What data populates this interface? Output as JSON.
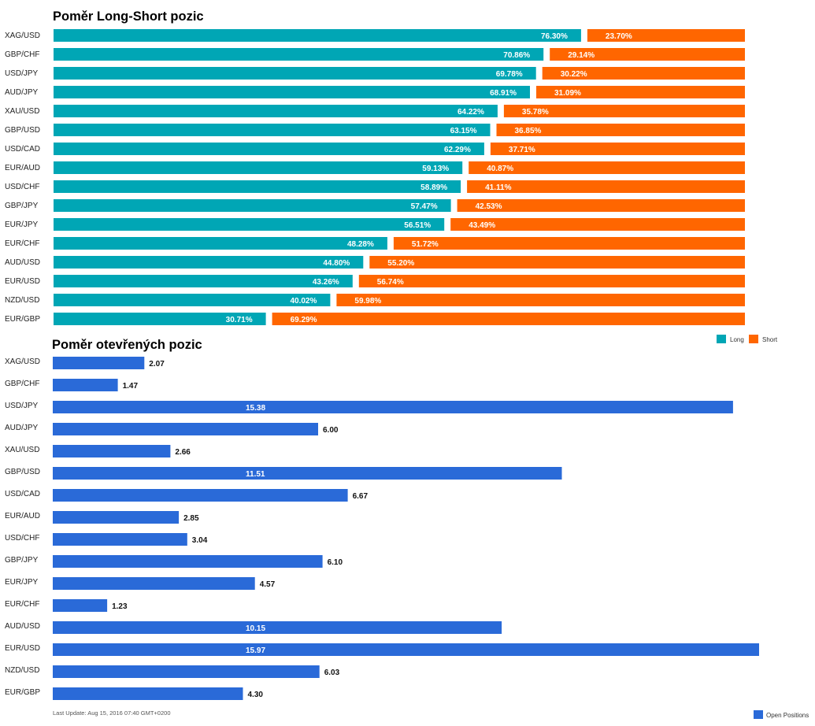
{
  "colors": {
    "long": "#00a6b5",
    "short": "#ff6600",
    "open": "#2a6ad8"
  },
  "chart_data": [
    {
      "type": "bar",
      "orientation": "horizontal",
      "stacked": "percent",
      "title": "Poměr Long-Short pozic",
      "categories": [
        "XAG/USD",
        "GBP/CHF",
        "USD/JPY",
        "AUD/JPY",
        "XAU/USD",
        "GBP/USD",
        "USD/CAD",
        "EUR/AUD",
        "USD/CHF",
        "GBP/JPY",
        "EUR/JPY",
        "EUR/CHF",
        "AUD/USD",
        "EUR/USD",
        "NZD/USD",
        "EUR/GBP"
      ],
      "series": [
        {
          "name": "Long",
          "values": [
            76.3,
            70.86,
            69.78,
            68.91,
            64.22,
            63.15,
            62.29,
            59.13,
            58.89,
            57.47,
            56.51,
            48.28,
            44.8,
            43.26,
            40.02,
            30.71
          ],
          "labels": [
            "76.30%",
            "70.86%",
            "69.78%",
            "68.91%",
            "64.22%",
            "63.15%",
            "62.29%",
            "59.13%",
            "58.89%",
            "57.47%",
            "56.51%",
            "48.28%",
            "44.80%",
            "43.26%",
            "40.02%",
            "30.71%"
          ]
        },
        {
          "name": "Short",
          "values": [
            23.7,
            29.14,
            30.22,
            31.09,
            35.78,
            36.85,
            37.71,
            40.87,
            41.11,
            42.53,
            43.49,
            51.72,
            55.2,
            56.74,
            59.98,
            69.29
          ],
          "labels": [
            "23.70%",
            "29.14%",
            "30.22%",
            "31.09%",
            "35.78%",
            "36.85%",
            "37.71%",
            "40.87%",
            "41.11%",
            "42.53%",
            "43.49%",
            "51.72%",
            "55.20%",
            "56.74%",
            "59.98%",
            "69.29%"
          ]
        }
      ],
      "legend": "bottom-right",
      "grid": false
    },
    {
      "type": "bar",
      "orientation": "horizontal",
      "title": "Poměr otevřených pozic",
      "categories": [
        "XAG/USD",
        "GBP/CHF",
        "USD/JPY",
        "AUD/JPY",
        "XAU/USD",
        "GBP/USD",
        "USD/CAD",
        "EUR/AUD",
        "USD/CHF",
        "GBP/JPY",
        "EUR/JPY",
        "EUR/CHF",
        "AUD/USD",
        "EUR/USD",
        "NZD/USD",
        "EUR/GBP"
      ],
      "series": [
        {
          "name": "Open Positions",
          "values": [
            2.07,
            1.47,
            15.38,
            6.0,
            2.66,
            11.51,
            6.67,
            2.85,
            3.04,
            6.1,
            4.57,
            1.23,
            10.15,
            15.97,
            6.03,
            4.3
          ],
          "labels": [
            "2.07",
            "1.47",
            "15.38",
            "6.00",
            "2.66",
            "11.51",
            "6.67",
            "2.85",
            "3.04",
            "6.10",
            "4.57",
            "1.23",
            "10.15",
            "15.97",
            "6.03",
            "4.30"
          ]
        }
      ],
      "legend": "bottom-right",
      "grid": false,
      "footer": "Last Update: Aug 15, 2016 07:40 GMT+0200"
    }
  ]
}
